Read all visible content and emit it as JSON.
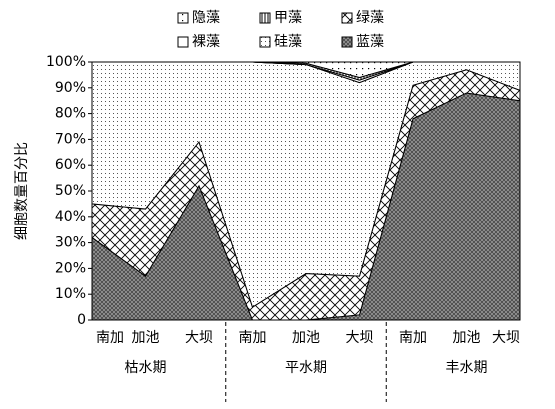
{
  "chart_data": {
    "type": "stacked_area",
    "ylabel": "细胞数量百分比",
    "categories": [
      "南加",
      "加池",
      "大坝",
      "南加",
      "加池",
      "大坝",
      "南加",
      "加池",
      "大坝"
    ],
    "groups": [
      "枯水期",
      "平水期",
      "丰水期"
    ],
    "series": [
      {
        "name": "蓝藻",
        "pattern": "crosshatch",
        "values": [
          32,
          17,
          52,
          0,
          0,
          2,
          78,
          88,
          85
        ]
      },
      {
        "name": "绿藻",
        "pattern": "diagonal",
        "values": [
          13,
          26,
          17,
          5,
          18,
          15,
          13,
          9,
          4
        ]
      },
      {
        "name": "硅藻",
        "pattern": "dots",
        "values": [
          55,
          57,
          31,
          95,
          81,
          75,
          9,
          3,
          11
        ]
      },
      {
        "name": "裸藻",
        "pattern": "open",
        "values": [
          0,
          0,
          0,
          0,
          0,
          1,
          0,
          0,
          0
        ]
      },
      {
        "name": "甲藻",
        "pattern": "vertical",
        "values": [
          0,
          0,
          0,
          0,
          0.5,
          1,
          0,
          0,
          0
        ]
      },
      {
        "name": "隐藻",
        "pattern": "sparse",
        "values": [
          0,
          0,
          0,
          0,
          0.5,
          6,
          0,
          0,
          0
        ]
      }
    ],
    "ylim": [
      0,
      100
    ],
    "yticks": [
      0,
      {
        "value": 10,
        "label": "10%"
      },
      {
        "value": 20,
        "label": "20%"
      },
      {
        "value": 30,
        "label": "30%"
      },
      {
        "value": 40,
        "label": "40%"
      },
      {
        "value": 50,
        "label": "50%"
      },
      {
        "value": 60,
        "label": "60%"
      },
      {
        "value": 70,
        "label": "70%"
      },
      {
        "value": 80,
        "label": "80%"
      },
      {
        "value": 90,
        "label": "90%"
      },
      {
        "value": 100,
        "label": "100%"
      }
    ]
  }
}
